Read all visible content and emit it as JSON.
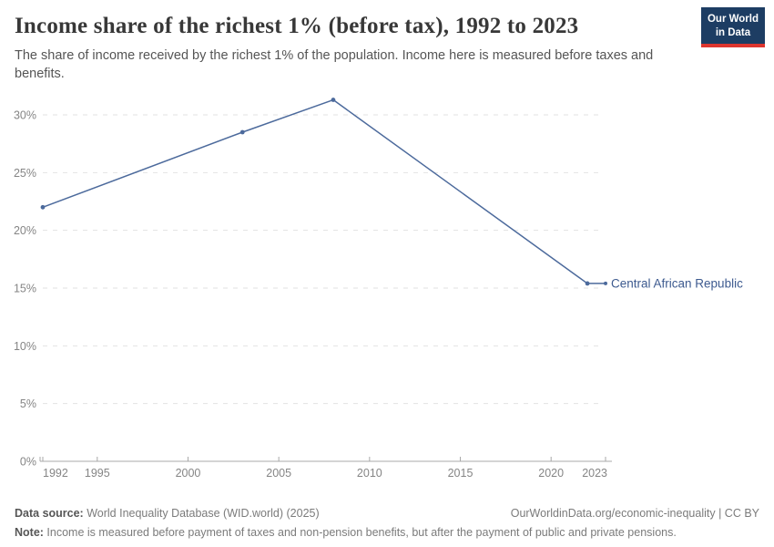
{
  "header": {
    "title": "Income share of the richest 1% (before tax), 1992 to 2023",
    "subtitle": "The share of income received by the richest 1% of the population. Income here is measured before taxes and benefits.",
    "logo": {
      "line1": "Our World",
      "line2": "in Data",
      "bg_color": "#1d3d63",
      "bar_color": "#dd352e"
    }
  },
  "chart_data": {
    "type": "line",
    "title": "Income share of the richest 1% (before tax), 1992 to 2023",
    "xlabel": "",
    "ylabel": "",
    "xlim": [
      1992,
      2023
    ],
    "ylim": [
      0,
      31.5
    ],
    "grid": "horizontal-dashed",
    "legend": "end-of-line-label",
    "xticks": [
      {
        "v": 1992,
        "label": "1992"
      },
      {
        "v": 1995,
        "label": "1995"
      },
      {
        "v": 2000,
        "label": "2000"
      },
      {
        "v": 2005,
        "label": "2005"
      },
      {
        "v": 2010,
        "label": "2010"
      },
      {
        "v": 2015,
        "label": "2015"
      },
      {
        "v": 2020,
        "label": "2020"
      },
      {
        "v": 2023,
        "label": "2023"
      }
    ],
    "yticks": [
      {
        "v": 0,
        "label": "0%"
      },
      {
        "v": 5,
        "label": "5%"
      },
      {
        "v": 10,
        "label": "10%"
      },
      {
        "v": 15,
        "label": "15%"
      },
      {
        "v": 20,
        "label": "20%"
      },
      {
        "v": 25,
        "label": "25%"
      },
      {
        "v": 30,
        "label": "30%"
      }
    ],
    "series": [
      {
        "name": "Central African Republic",
        "color": "#4c6a9c",
        "label_color": "#3d5a8f",
        "points": [
          {
            "x": 1992,
            "y": 22.0
          },
          {
            "x": 2003,
            "y": 28.5
          },
          {
            "x": 2008,
            "y": 31.3
          },
          {
            "x": 2022,
            "y": 15.4
          },
          {
            "x": 2023,
            "y": 15.4
          }
        ]
      }
    ]
  },
  "footer": {
    "data_source_label": "Data source:",
    "data_source_value": " World Inequality Database (WID.world) (2025)",
    "link_text": "OurWorldinData.org/economic-inequality",
    "separator": " | ",
    "license": "CC BY",
    "note_label": "Note:",
    "note_value": " Income is measured before payment of taxes and non-pension benefits, but after the payment of public and private pensions."
  }
}
